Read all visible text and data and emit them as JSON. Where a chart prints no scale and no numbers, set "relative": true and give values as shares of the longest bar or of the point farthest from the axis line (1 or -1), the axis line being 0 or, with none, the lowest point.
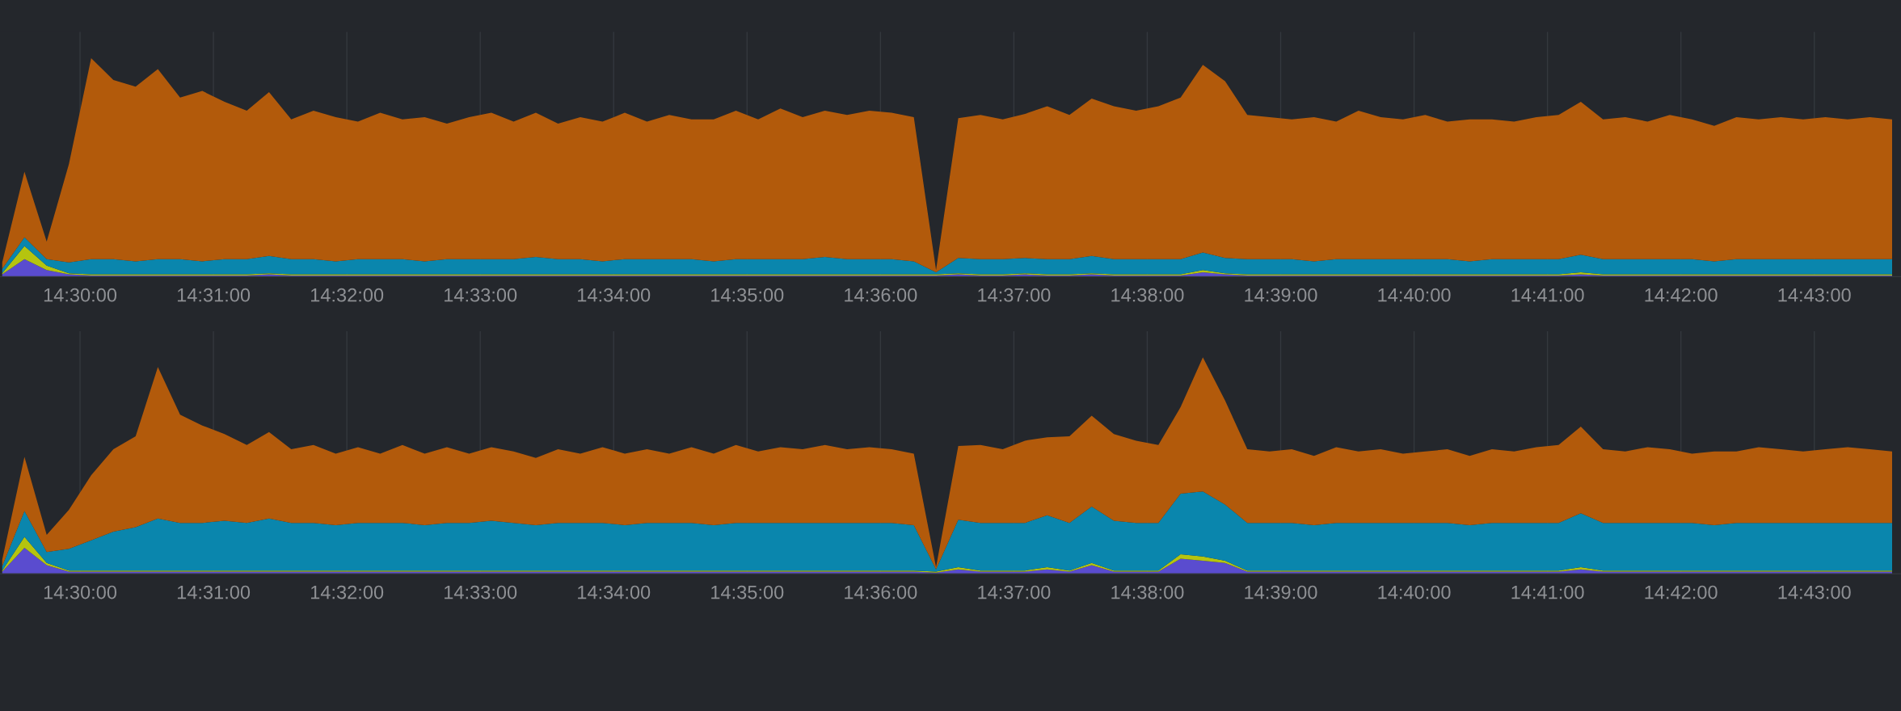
{
  "chart_data": [
    {
      "type": "area",
      "stacked": true,
      "relative": true,
      "grid": "x",
      "tick_labels": "x",
      "x": [
        14.490278,
        14.493056,
        14.495833,
        14.498611,
        14.501389,
        14.504167,
        14.506944,
        14.509722,
        14.5125,
        14.515278,
        14.518056,
        14.520833,
        14.523611,
        14.526389,
        14.529167,
        14.531944,
        14.534722,
        14.5375,
        14.540278,
        14.543056,
        14.545833,
        14.548611,
        14.551389,
        14.554167,
        14.556944,
        14.559722,
        14.5625,
        14.565278,
        14.568056,
        14.570833,
        14.573611,
        14.576389,
        14.579167,
        14.581944,
        14.584722,
        14.5875,
        14.590278,
        14.593056,
        14.595833,
        14.598611,
        14.601389,
        14.604167,
        14.606944,
        14.609722,
        14.6125,
        14.615278,
        14.618056,
        14.620833,
        14.623611,
        14.626389,
        14.629167,
        14.631944,
        14.634722,
        14.6375,
        14.640278,
        14.643056,
        14.645833,
        14.648611,
        14.651389,
        14.654167,
        14.656944,
        14.659722,
        14.6625,
        14.665278,
        14.668056,
        14.670833,
        14.673611,
        14.676389,
        14.679167,
        14.681944,
        14.684722,
        14.6875,
        14.690278,
        14.693056,
        14.695833,
        14.698611,
        14.701389,
        14.704167,
        14.706944,
        14.709722,
        14.7125,
        14.715278,
        14.718056,
        14.720833,
        14.723611,
        14.726389
      ],
      "xlim": [
        14.49,
        14.7275
      ],
      "xticks": [
        {
          "value": 14.5,
          "label": "14:30:00"
        },
        {
          "value": 14.516667,
          "label": "14:31:00"
        },
        {
          "value": 14.533333,
          "label": "14:32:00"
        },
        {
          "value": 14.55,
          "label": "14:33:00"
        },
        {
          "value": 14.566667,
          "label": "14:34:00"
        },
        {
          "value": 14.583333,
          "label": "14:35:00"
        },
        {
          "value": 14.6,
          "label": "14:36:00"
        },
        {
          "value": 14.616667,
          "label": "14:37:00"
        },
        {
          "value": 14.633333,
          "label": "14:38:00"
        },
        {
          "value": 14.65,
          "label": "14:39:00"
        },
        {
          "value": 14.666667,
          "label": "14:40:00"
        },
        {
          "value": 14.683333,
          "label": "14:41:00"
        },
        {
          "value": 14.7,
          "label": "14:42:00"
        },
        {
          "value": 14.716667,
          "label": "14:43:00"
        }
      ],
      "series": [
        {
          "color": "#5a4ccf",
          "values": [
            0.01,
            0.08,
            0.03,
            0.01,
            0.005,
            0.005,
            0.005,
            0.005,
            0.005,
            0.005,
            0.005,
            0.005,
            0.01,
            0.005,
            0.005,
            0.005,
            0.005,
            0.005,
            0.005,
            0.005,
            0.005,
            0.005,
            0.005,
            0.005,
            0.005,
            0.005,
            0.005,
            0.005,
            0.005,
            0.005,
            0.005,
            0.005,
            0.005,
            0.005,
            0.005,
            0.005,
            0.005,
            0.005,
            0.005,
            0.005,
            0.005,
            0.005,
            0.005,
            0.01,
            0.005,
            0.005,
            0.01,
            0.005,
            0.005,
            0.01,
            0.005,
            0.005,
            0.005,
            0.005,
            0.02,
            0.01,
            0.005,
            0.005,
            0.005,
            0.005,
            0.005,
            0.005,
            0.005,
            0.005,
            0.005,
            0.005,
            0.005,
            0.005,
            0.005,
            0.005,
            0.005,
            0.01,
            0.005,
            0.005,
            0.005,
            0.005,
            0.005,
            0.005,
            0.005,
            0.005,
            0.005,
            0.005,
            0.005,
            0.005,
            0.005,
            0.005
          ]
        },
        {
          "color": "#b5c40f",
          "values": [
            0.005,
            0.06,
            0.02,
            0.005,
            0.005,
            0.005,
            0.005,
            0.005,
            0.005,
            0.005,
            0.005,
            0.005,
            0.005,
            0.005,
            0.005,
            0.005,
            0.005,
            0.005,
            0.005,
            0.005,
            0.005,
            0.005,
            0.005,
            0.005,
            0.005,
            0.005,
            0.005,
            0.005,
            0.005,
            0.005,
            0.005,
            0.005,
            0.005,
            0.005,
            0.005,
            0.005,
            0.005,
            0.005,
            0.005,
            0.005,
            0.005,
            0.005,
            0.005,
            0.005,
            0.005,
            0.005,
            0.005,
            0.005,
            0.005,
            0.005,
            0.005,
            0.005,
            0.005,
            0.005,
            0.01,
            0.005,
            0.005,
            0.005,
            0.005,
            0.005,
            0.005,
            0.005,
            0.005,
            0.005,
            0.005,
            0.005,
            0.005,
            0.005,
            0.005,
            0.005,
            0.005,
            0.01,
            0.005,
            0.005,
            0.005,
            0.005,
            0.005,
            0.005,
            0.005,
            0.005,
            0.005,
            0.005,
            0.005,
            0.005,
            0.005,
            0.005
          ]
        },
        {
          "color": "#0a86ad",
          "values": [
            0.02,
            0.04,
            0.03,
            0.05,
            0.07,
            0.07,
            0.06,
            0.07,
            0.07,
            0.06,
            0.07,
            0.07,
            0.08,
            0.07,
            0.07,
            0.06,
            0.07,
            0.07,
            0.07,
            0.06,
            0.07,
            0.07,
            0.07,
            0.07,
            0.08,
            0.07,
            0.07,
            0.06,
            0.07,
            0.07,
            0.07,
            0.07,
            0.06,
            0.07,
            0.07,
            0.07,
            0.07,
            0.08,
            0.07,
            0.07,
            0.07,
            0.06,
            0.01,
            0.07,
            0.07,
            0.07,
            0.07,
            0.07,
            0.07,
            0.08,
            0.07,
            0.07,
            0.07,
            0.07,
            0.08,
            0.07,
            0.07,
            0.07,
            0.07,
            0.06,
            0.07,
            0.07,
            0.07,
            0.07,
            0.07,
            0.07,
            0.06,
            0.07,
            0.07,
            0.07,
            0.07,
            0.08,
            0.07,
            0.07,
            0.07,
            0.07,
            0.07,
            0.06,
            0.07,
            0.07,
            0.07,
            0.07,
            0.07,
            0.07,
            0.07,
            0.07
          ]
        },
        {
          "color": "#b25a0b",
          "values": [
            0.03,
            0.3,
            0.08,
            0.45,
            0.92,
            0.82,
            0.8,
            0.87,
            0.74,
            0.78,
            0.72,
            0.68,
            0.75,
            0.64,
            0.68,
            0.66,
            0.63,
            0.67,
            0.64,
            0.66,
            0.62,
            0.65,
            0.67,
            0.63,
            0.66,
            0.62,
            0.65,
            0.64,
            0.67,
            0.63,
            0.66,
            0.64,
            0.65,
            0.68,
            0.64,
            0.69,
            0.65,
            0.67,
            0.66,
            0.68,
            0.67,
            0.66,
            0.01,
            0.64,
            0.66,
            0.64,
            0.66,
            0.7,
            0.66,
            0.72,
            0.7,
            0.68,
            0.7,
            0.74,
            0.86,
            0.81,
            0.66,
            0.65,
            0.64,
            0.66,
            0.63,
            0.68,
            0.65,
            0.64,
            0.66,
            0.63,
            0.65,
            0.64,
            0.63,
            0.65,
            0.66,
            0.7,
            0.64,
            0.65,
            0.63,
            0.66,
            0.64,
            0.62,
            0.65,
            0.64,
            0.65,
            0.64,
            0.65,
            0.64,
            0.65,
            0.64
          ]
        }
      ]
    },
    {
      "type": "area",
      "stacked": true,
      "relative": true,
      "grid": "x",
      "tick_labels": "x",
      "x": [
        14.490278,
        14.493056,
        14.495833,
        14.498611,
        14.501389,
        14.504167,
        14.506944,
        14.509722,
        14.5125,
        14.515278,
        14.518056,
        14.520833,
        14.523611,
        14.526389,
        14.529167,
        14.531944,
        14.534722,
        14.5375,
        14.540278,
        14.543056,
        14.545833,
        14.548611,
        14.551389,
        14.554167,
        14.556944,
        14.559722,
        14.5625,
        14.565278,
        14.568056,
        14.570833,
        14.573611,
        14.576389,
        14.579167,
        14.581944,
        14.584722,
        14.5875,
        14.590278,
        14.593056,
        14.595833,
        14.598611,
        14.601389,
        14.604167,
        14.606944,
        14.609722,
        14.6125,
        14.615278,
        14.618056,
        14.620833,
        14.623611,
        14.626389,
        14.629167,
        14.631944,
        14.634722,
        14.6375,
        14.640278,
        14.643056,
        14.645833,
        14.648611,
        14.651389,
        14.654167,
        14.656944,
        14.659722,
        14.6625,
        14.665278,
        14.668056,
        14.670833,
        14.673611,
        14.676389,
        14.679167,
        14.681944,
        14.684722,
        14.6875,
        14.690278,
        14.693056,
        14.695833,
        14.698611,
        14.701389,
        14.704167,
        14.706944,
        14.709722,
        14.7125,
        14.715278,
        14.718056,
        14.720833,
        14.723611,
        14.726389
      ],
      "xlim": [
        14.49,
        14.7275
      ],
      "xticks": [
        {
          "value": 14.5,
          "label": "14:30:00"
        },
        {
          "value": 14.516667,
          "label": "14:31:00"
        },
        {
          "value": 14.533333,
          "label": "14:32:00"
        },
        {
          "value": 14.55,
          "label": "14:33:00"
        },
        {
          "value": 14.566667,
          "label": "14:34:00"
        },
        {
          "value": 14.583333,
          "label": "14:35:00"
        },
        {
          "value": 14.6,
          "label": "14:36:00"
        },
        {
          "value": 14.616667,
          "label": "14:37:00"
        },
        {
          "value": 14.633333,
          "label": "14:38:00"
        },
        {
          "value": 14.65,
          "label": "14:39:00"
        },
        {
          "value": 14.666667,
          "label": "14:40:00"
        },
        {
          "value": 14.683333,
          "label": "14:41:00"
        },
        {
          "value": 14.7,
          "label": "14:42:00"
        },
        {
          "value": 14.716667,
          "label": "14:43:00"
        }
      ],
      "series": [
        {
          "color": "#5a4ccf",
          "values": [
            0.01,
            0.12,
            0.04,
            0.01,
            0.01,
            0.01,
            0.01,
            0.01,
            0.01,
            0.01,
            0.01,
            0.01,
            0.01,
            0.01,
            0.01,
            0.01,
            0.01,
            0.01,
            0.01,
            0.01,
            0.01,
            0.01,
            0.01,
            0.01,
            0.01,
            0.01,
            0.01,
            0.01,
            0.01,
            0.01,
            0.01,
            0.01,
            0.01,
            0.01,
            0.01,
            0.01,
            0.01,
            0.01,
            0.01,
            0.01,
            0.01,
            0.01,
            0.005,
            0.02,
            0.01,
            0.01,
            0.01,
            0.02,
            0.01,
            0.04,
            0.01,
            0.01,
            0.01,
            0.07,
            0.06,
            0.05,
            0.01,
            0.01,
            0.01,
            0.01,
            0.01,
            0.01,
            0.01,
            0.01,
            0.01,
            0.01,
            0.01,
            0.01,
            0.01,
            0.01,
            0.01,
            0.02,
            0.01,
            0.01,
            0.01,
            0.01,
            0.01,
            0.01,
            0.01,
            0.01,
            0.01,
            0.01,
            0.01,
            0.01,
            0.01,
            0.01
          ]
        },
        {
          "color": "#b5c40f",
          "values": [
            0.005,
            0.05,
            0.01,
            0.005,
            0.005,
            0.005,
            0.005,
            0.005,
            0.005,
            0.005,
            0.005,
            0.005,
            0.005,
            0.005,
            0.005,
            0.005,
            0.005,
            0.005,
            0.005,
            0.005,
            0.005,
            0.005,
            0.005,
            0.005,
            0.005,
            0.005,
            0.005,
            0.005,
            0.005,
            0.005,
            0.005,
            0.005,
            0.005,
            0.005,
            0.005,
            0.005,
            0.005,
            0.005,
            0.005,
            0.005,
            0.005,
            0.005,
            0.005,
            0.01,
            0.005,
            0.005,
            0.005,
            0.01,
            0.005,
            0.01,
            0.005,
            0.005,
            0.005,
            0.02,
            0.02,
            0.01,
            0.005,
            0.005,
            0.005,
            0.005,
            0.005,
            0.005,
            0.005,
            0.005,
            0.005,
            0.005,
            0.005,
            0.005,
            0.005,
            0.005,
            0.005,
            0.01,
            0.005,
            0.005,
            0.005,
            0.005,
            0.005,
            0.005,
            0.005,
            0.005,
            0.005,
            0.005,
            0.005,
            0.005,
            0.005,
            0.005
          ]
        },
        {
          "color": "#0a86ad",
          "values": [
            0.02,
            0.12,
            0.05,
            0.1,
            0.14,
            0.18,
            0.2,
            0.24,
            0.22,
            0.22,
            0.23,
            0.22,
            0.24,
            0.22,
            0.22,
            0.21,
            0.22,
            0.22,
            0.22,
            0.21,
            0.22,
            0.22,
            0.23,
            0.22,
            0.21,
            0.22,
            0.22,
            0.22,
            0.21,
            0.22,
            0.22,
            0.22,
            0.21,
            0.22,
            0.22,
            0.22,
            0.22,
            0.22,
            0.22,
            0.22,
            0.22,
            0.21,
            0.01,
            0.22,
            0.22,
            0.22,
            0.22,
            0.24,
            0.22,
            0.26,
            0.23,
            0.22,
            0.22,
            0.28,
            0.3,
            0.26,
            0.22,
            0.22,
            0.22,
            0.21,
            0.22,
            0.22,
            0.22,
            0.22,
            0.22,
            0.22,
            0.21,
            0.22,
            0.22,
            0.22,
            0.22,
            0.25,
            0.22,
            0.22,
            0.22,
            0.22,
            0.22,
            0.21,
            0.22,
            0.22,
            0.22,
            0.22,
            0.22,
            0.22,
            0.22,
            0.22
          ]
        },
        {
          "color": "#b25a0b",
          "values": [
            0.03,
            0.25,
            0.08,
            0.18,
            0.3,
            0.38,
            0.42,
            0.7,
            0.5,
            0.45,
            0.4,
            0.36,
            0.4,
            0.34,
            0.36,
            0.33,
            0.35,
            0.32,
            0.36,
            0.33,
            0.35,
            0.32,
            0.34,
            0.33,
            0.31,
            0.34,
            0.32,
            0.35,
            0.33,
            0.34,
            0.32,
            0.35,
            0.33,
            0.36,
            0.33,
            0.35,
            0.34,
            0.36,
            0.34,
            0.35,
            0.34,
            0.33,
            0.01,
            0.34,
            0.36,
            0.34,
            0.38,
            0.36,
            0.4,
            0.42,
            0.4,
            0.38,
            0.36,
            0.4,
            0.62,
            0.48,
            0.34,
            0.33,
            0.34,
            0.32,
            0.35,
            0.33,
            0.34,
            0.32,
            0.33,
            0.34,
            0.32,
            0.34,
            0.33,
            0.35,
            0.36,
            0.4,
            0.34,
            0.33,
            0.35,
            0.34,
            0.32,
            0.34,
            0.33,
            0.35,
            0.34,
            0.33,
            0.34,
            0.35,
            0.34,
            0.33
          ]
        }
      ]
    }
  ]
}
